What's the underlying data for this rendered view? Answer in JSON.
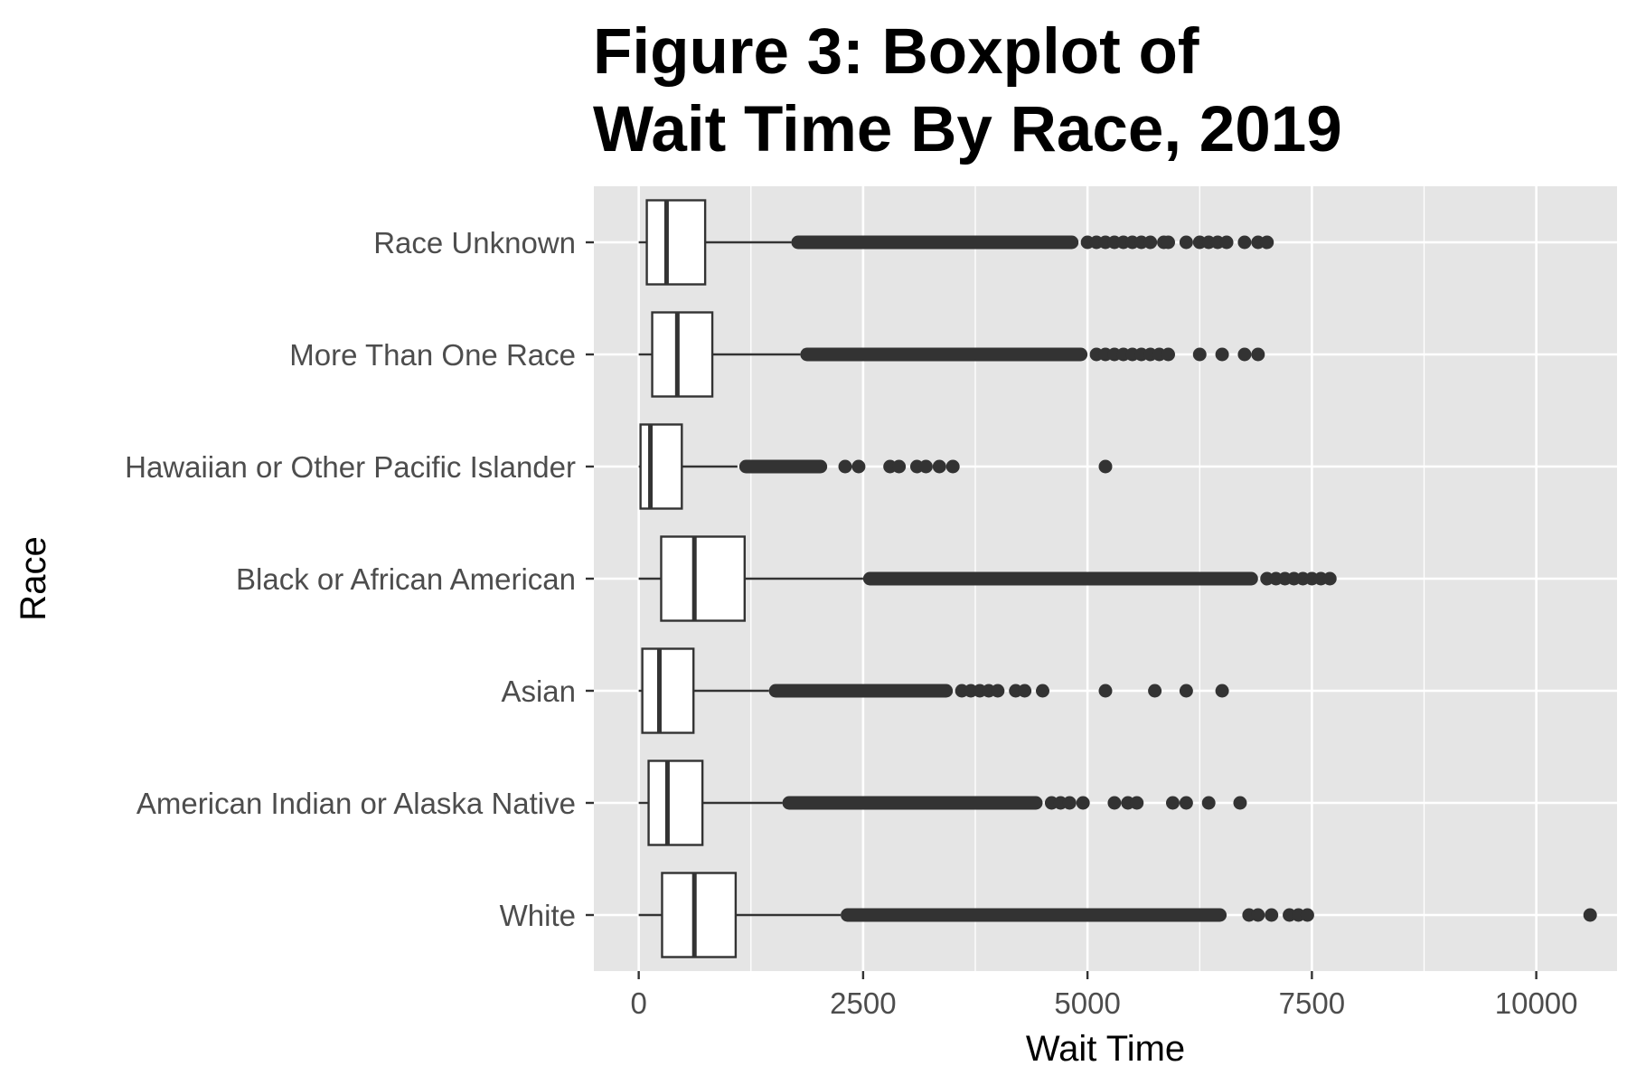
{
  "chart_data": {
    "type": "boxplot",
    "title": [
      "Figure 3: Boxplot of",
      "Wait Time By Race, 2019"
    ],
    "xlabel": "Wait Time",
    "ylabel": "Race",
    "xlim": [
      -500,
      10900
    ],
    "xticks": [
      0,
      2500,
      5000,
      7500,
      10000
    ],
    "xtick_labels": [
      "0",
      "2500",
      "5000",
      "7500",
      "10000"
    ],
    "grid": true,
    "colors": {
      "panel": "#e5e5e5",
      "grid": "#ffffff",
      "box_fill": "#ffffff",
      "stroke": "#333333"
    },
    "categories": [
      "Race Unknown",
      "More Than One Race",
      "Hawaiian or Other Pacific Islander",
      "Black or African American",
      "Asian",
      "American Indian or Alaska Native",
      "White"
    ],
    "boxes": [
      {
        "category": "Race Unknown",
        "whisker_low": 0,
        "q1": 90,
        "median": 310,
        "q3": 740,
        "whisker_high": 1700,
        "outlier_band": [
          1700,
          4900
        ],
        "outliers": [
          5000,
          5100,
          5200,
          5300,
          5400,
          5500,
          5600,
          5700,
          5850,
          5900,
          6100,
          6250,
          6350,
          6450,
          6550,
          6750,
          6900,
          7000
        ]
      },
      {
        "category": "More Than One Race",
        "whisker_low": 0,
        "q1": 150,
        "median": 430,
        "q3": 820,
        "whisker_high": 1800,
        "outlier_band": [
          1800,
          5000
        ],
        "outliers": [
          5100,
          5200,
          5300,
          5400,
          5500,
          5600,
          5700,
          5800,
          5900,
          6250,
          6500,
          6750,
          6900
        ]
      },
      {
        "category": "Hawaiian or Other Pacific Islander",
        "whisker_low": 0,
        "q1": 20,
        "median": 130,
        "q3": 480,
        "whisker_high": 1100,
        "outlier_band": [
          1120,
          2100
        ],
        "outliers": [
          2300,
          2450,
          2800,
          2900,
          3100,
          3200,
          3350,
          3500,
          5200
        ]
      },
      {
        "category": "Black or African American",
        "whisker_low": 0,
        "q1": 250,
        "median": 620,
        "q3": 1180,
        "whisker_high": 2500,
        "outlier_band": [
          2500,
          6900
        ],
        "outliers": [
          7000,
          7100,
          7200,
          7300,
          7400,
          7500,
          7600,
          7700
        ]
      },
      {
        "category": "Asian",
        "whisker_low": 0,
        "q1": 40,
        "median": 230,
        "q3": 610,
        "whisker_high": 1450,
        "outlier_band": [
          1450,
          3500
        ],
        "outliers": [
          3600,
          3700,
          3800,
          3900,
          4000,
          4200,
          4300,
          4500,
          5200,
          5750,
          6100,
          6500
        ]
      },
      {
        "category": "American Indian or Alaska Native",
        "whisker_low": 0,
        "q1": 110,
        "median": 320,
        "q3": 710,
        "whisker_high": 1600,
        "outlier_band": [
          1600,
          4500
        ],
        "outliers": [
          4600,
          4700,
          4800,
          4950,
          5300,
          5450,
          5550,
          5950,
          6100,
          6350,
          6700
        ]
      },
      {
        "category": "White",
        "whisker_low": 0,
        "q1": 260,
        "median": 620,
        "q3": 1080,
        "whisker_high": 2250,
        "outlier_band": [
          2250,
          6550
        ],
        "outliers": [
          6800,
          6900,
          7050,
          7250,
          7350,
          7450,
          10600
        ]
      }
    ]
  }
}
